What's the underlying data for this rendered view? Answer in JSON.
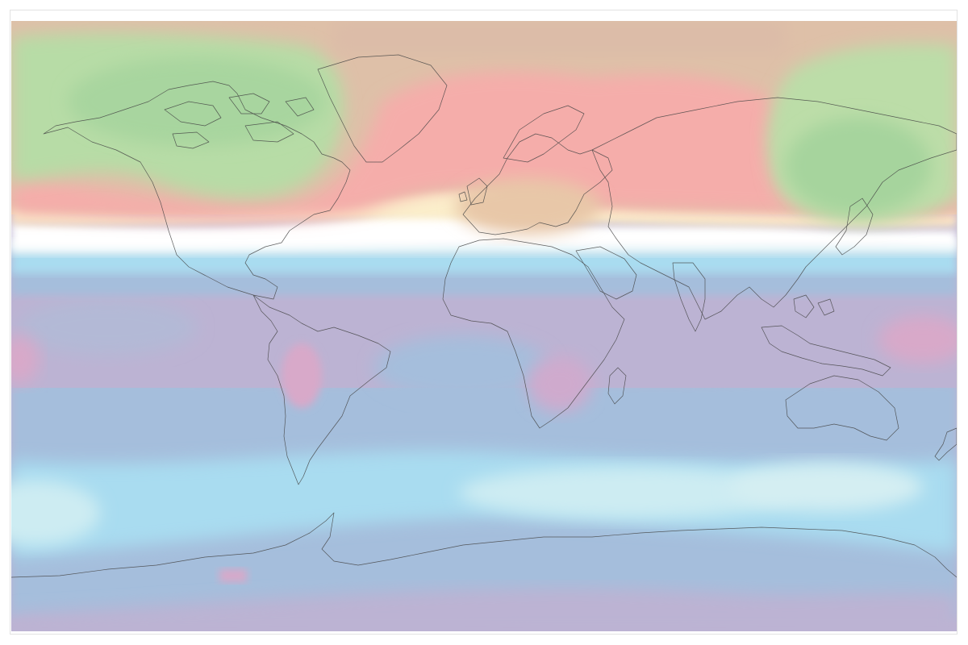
{
  "map": {
    "projection": "equirectangular",
    "field": "filled-contour",
    "colormap": [
      {
        "name": "violet",
        "hex": "#bcb3d3"
      },
      {
        "name": "blue-grey",
        "hex": "#a5bedc"
      },
      {
        "name": "sky-blue",
        "hex": "#a9dcf0"
      },
      {
        "name": "pale-cyan",
        "hex": "#cdecf2"
      },
      {
        "name": "white",
        "hex": "#ffffff"
      },
      {
        "name": "pale-yellow",
        "hex": "#fbeecb"
      },
      {
        "name": "salmon",
        "hex": "#f5adaa"
      },
      {
        "name": "tan",
        "hex": "#dec0a8"
      },
      {
        "name": "green",
        "hex": "#b7dca6"
      },
      {
        "name": "pink",
        "hex": "#d8a9c9"
      }
    ],
    "coastline_color": "#444444",
    "background": "#ffffff"
  }
}
